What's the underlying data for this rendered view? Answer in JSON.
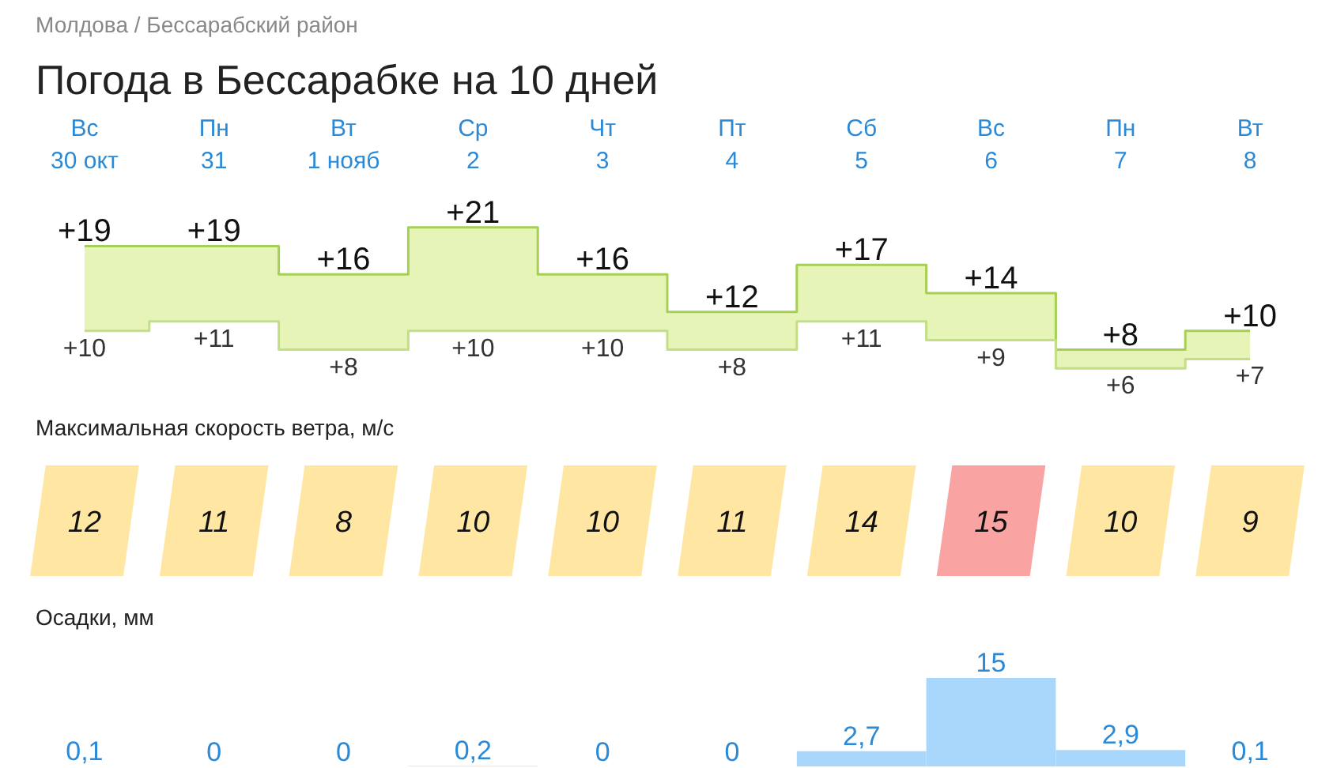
{
  "chart_data": [
    {
      "type": "step",
      "title": "Погода в Бессарабке на 10 дней",
      "subtitle": "Молдова / Бессарабский район",
      "categories": [
        "Вс\n30 окт",
        "Пн\n31",
        "Вт\n1 нояб",
        "Ср\n2",
        "Чт\n3",
        "Пт\n4",
        "Сб\n5",
        "Вс\n6",
        "Пн\n7",
        "Вт\n8"
      ],
      "series": [
        {
          "color": "#a5cf55",
          "values": [
            19,
            19,
            16,
            21,
            16,
            12,
            17,
            14,
            8,
            10
          ],
          "lower": [
            10,
            11,
            8,
            10,
            10,
            8,
            11,
            9,
            6,
            7
          ],
          "upper": [
            19,
            19,
            16,
            21,
            16,
            12,
            17,
            14,
            8,
            10
          ],
          "value_labels": [
            "+19",
            "+19",
            "+16",
            "+21",
            "+16",
            "+12",
            "+17",
            "+14",
            "+8",
            "+10"
          ]
        },
        {
          "color": "#c3df86",
          "values": [
            10,
            11,
            8,
            10,
            10,
            8,
            11,
            9,
            6,
            7
          ],
          "value_labels": [
            "+10",
            "+11",
            "+8",
            "+10",
            "+10",
            "+8",
            "+11",
            "+9",
            "+6",
            "+7"
          ]
        }
      ],
      "grid": false,
      "tick_labels": "x"
    },
    {
      "type": "other",
      "title": "Максимальная скорость ветра, м/с",
      "categories": [
        null,
        null,
        null,
        null,
        null,
        null,
        null,
        null,
        null,
        null
      ],
      "values": [
        12,
        11,
        8,
        10,
        10,
        11,
        14,
        15,
        10,
        9
      ],
      "colors": [
        "#ffe7a3",
        "#ffe7a3",
        "#ffe7a3",
        "#ffe7a3",
        "#ffe7a3",
        "#ffe7a3",
        "#ffe7a3",
        "#f9a3a3",
        "#ffe7a3",
        "#ffe7a3"
      ],
      "data_labels": true
    },
    {
      "type": "bar",
      "title": "Осадки, мм",
      "categories": [
        null,
        null,
        null,
        null,
        null,
        null,
        null,
        null,
        null,
        null
      ],
      "values": [
        0.1,
        0,
        0,
        0.2,
        0,
        0,
        2.7,
        15,
        2.9,
        0.1
      ],
      "value_labels": [
        "0,1",
        "0",
        "0",
        "0,2",
        "0",
        "0",
        "2,7",
        "15",
        "2,9",
        "0,1"
      ],
      "color": "#a9d6fb"
    }
  ]
}
